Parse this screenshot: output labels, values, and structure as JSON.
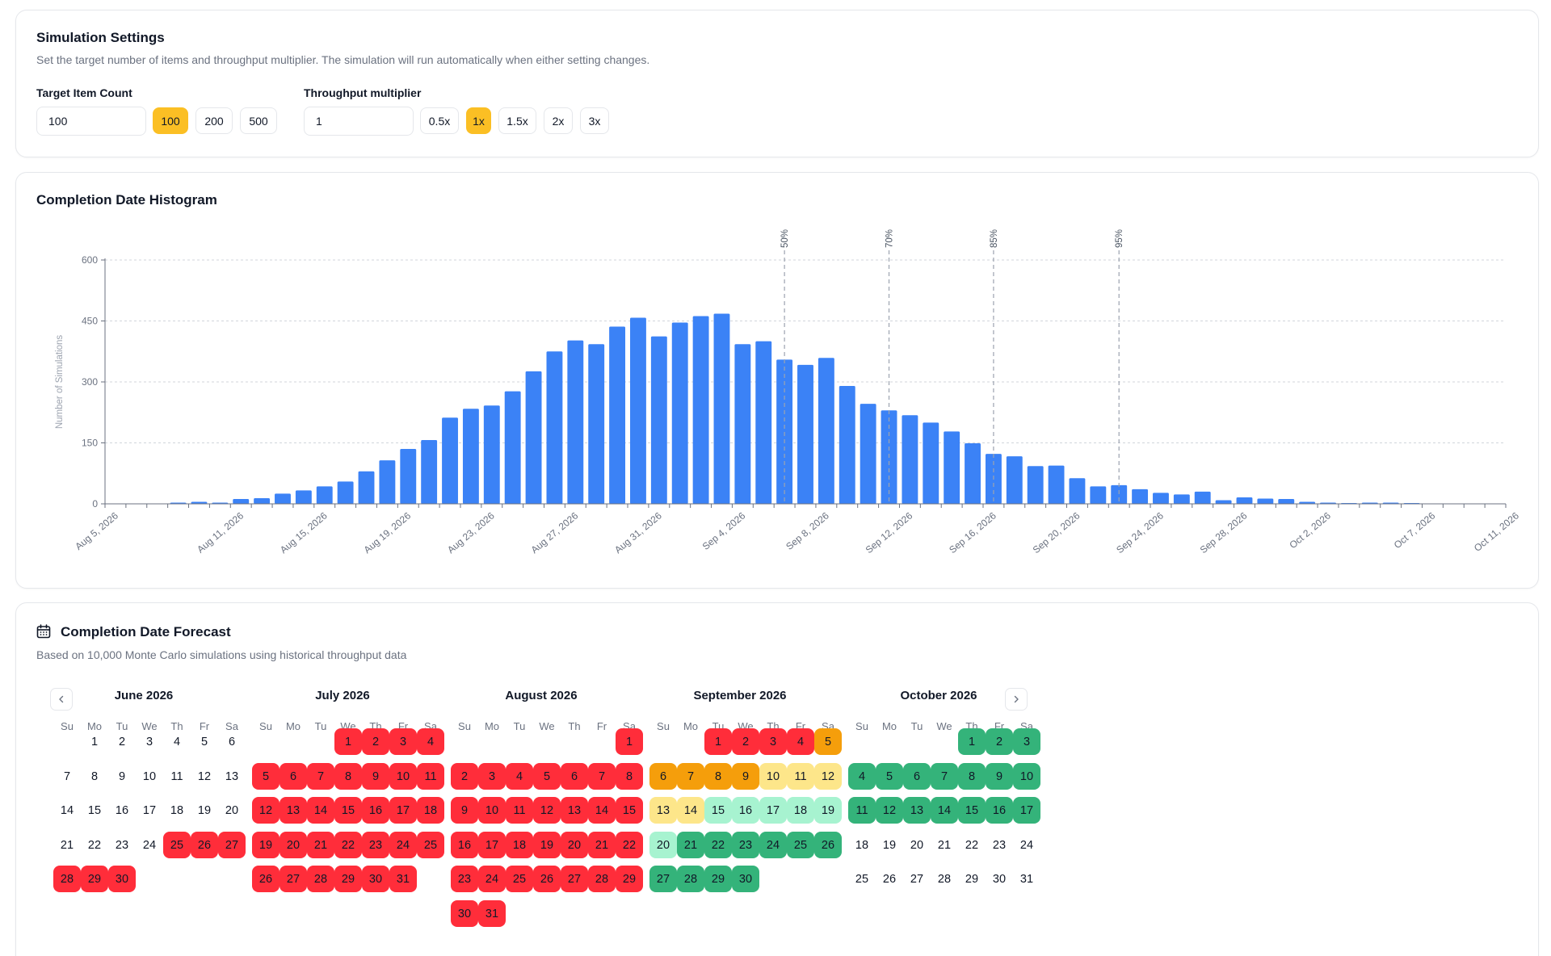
{
  "settings": {
    "title": "Simulation Settings",
    "description": "Set the target number of items and throughput multiplier. The simulation will run automatically when either setting changes.",
    "target_label": "Target Item Count",
    "target_value": "100",
    "target_presets": [
      "100",
      "200",
      "500"
    ],
    "target_active": "100",
    "throughput_label": "Throughput multiplier",
    "throughput_value": "1",
    "throughput_presets": [
      "0.5x",
      "1x",
      "1.5x",
      "2x",
      "3x"
    ],
    "throughput_active": "1x"
  },
  "histogram": {
    "title": "Completion Date Histogram"
  },
  "chart_data": {
    "type": "bar",
    "ylabel": "Number of Simulations",
    "ylim": [
      0,
      600
    ],
    "yticks": [
      0,
      150,
      300,
      450,
      600
    ],
    "grid": true,
    "start_date": "Aug 5, 2026",
    "x_tick_labels": [
      "Aug 5, 2026",
      "Aug 11, 2026",
      "Aug 15, 2026",
      "Aug 19, 2026",
      "Aug 23, 2026",
      "Aug 27, 2026",
      "Aug 31, 2026",
      "Sep 4, 2026",
      "Sep 8, 2026",
      "Sep 12, 2026",
      "Sep 16, 2026",
      "Sep 20, 2026",
      "Sep 24, 2026",
      "Sep 28, 2026",
      "Oct 2, 2026",
      "Oct 7, 2026",
      "Oct 11, 2026"
    ],
    "values": [
      0,
      1,
      1,
      3,
      5,
      3,
      12,
      14,
      25,
      33,
      43,
      55,
      80,
      107,
      135,
      157,
      212,
      234,
      242,
      277,
      326,
      375,
      402,
      393,
      436,
      458,
      412,
      446,
      462,
      468,
      393,
      400,
      355,
      342,
      359,
      290,
      246,
      230,
      218,
      200,
      178,
      149,
      123,
      117,
      93,
      94,
      63,
      43,
      46,
      36,
      27,
      23,
      30,
      9,
      16,
      13,
      12,
      5,
      3,
      2,
      3,
      3,
      2,
      1,
      0,
      1,
      1
    ],
    "percentiles": [
      {
        "label": "50%",
        "date": "Sep 6, 2026"
      },
      {
        "label": "70%",
        "date": "Sep 11, 2026"
      },
      {
        "label": "85%",
        "date": "Sep 16, 2026"
      },
      {
        "label": "95%",
        "date": "Sep 22, 2026"
      }
    ]
  },
  "forecast": {
    "title": "Completion Date Forecast",
    "description": "Based on 10,000 Monte Carlo simulations using historical throughput data",
    "weekdays": [
      "Su",
      "Mo",
      "Tu",
      "We",
      "Th",
      "Fr",
      "Sa"
    ],
    "colors": {
      "red": "#ff2d3a",
      "orange": "#f59e0b",
      "yellow": "#fde68a",
      "mint": "#a7f3d0",
      "green": "#34b37a"
    },
    "months": [
      {
        "title": "June 2026",
        "start_weekday": 1,
        "days": 30,
        "ranges": [
          {
            "from": 25,
            "to": 30,
            "color": "red"
          }
        ]
      },
      {
        "title": "July 2026",
        "start_weekday": 3,
        "days": 31,
        "ranges": [
          {
            "from": 1,
            "to": 31,
            "color": "red"
          }
        ]
      },
      {
        "title": "August 2026",
        "start_weekday": 6,
        "days": 31,
        "ranges": [
          {
            "from": 1,
            "to": 31,
            "color": "red"
          }
        ]
      },
      {
        "title": "September 2026",
        "start_weekday": 2,
        "days": 30,
        "ranges": [
          {
            "from": 1,
            "to": 4,
            "color": "red"
          },
          {
            "from": 5,
            "to": 9,
            "color": "orange"
          },
          {
            "from": 10,
            "to": 14,
            "color": "yellow"
          },
          {
            "from": 15,
            "to": 20,
            "color": "mint"
          },
          {
            "from": 21,
            "to": 30,
            "color": "green"
          }
        ]
      },
      {
        "title": "October 2026",
        "start_weekday": 4,
        "days": 31,
        "ranges": [
          {
            "from": 1,
            "to": 17,
            "color": "green"
          }
        ]
      }
    ]
  }
}
